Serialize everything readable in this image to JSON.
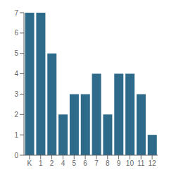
{
  "chart_data": {
    "type": "bar",
    "categories": [
      "K",
      "1",
      "2",
      "4",
      "5",
      "6",
      "7",
      "8",
      "9",
      "10",
      "11",
      "12"
    ],
    "values": [
      7,
      7,
      5,
      2,
      3,
      3,
      4,
      2,
      4,
      4,
      3,
      1
    ],
    "color": "#2e6a8a",
    "ylim": [
      0,
      7
    ],
    "yticks": [
      0,
      1,
      2,
      3,
      4,
      5,
      6,
      7
    ],
    "grid": false
  }
}
